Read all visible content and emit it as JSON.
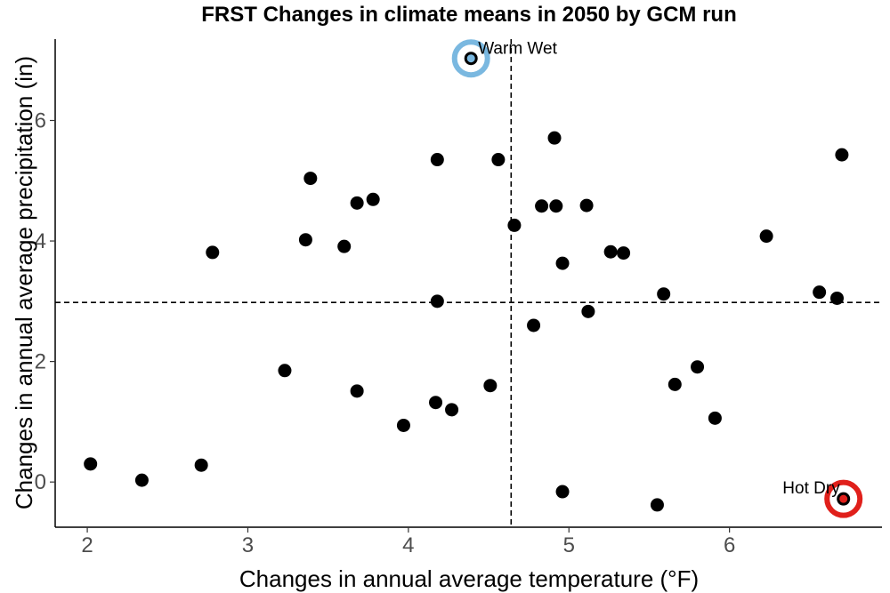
{
  "chart_data": {
    "type": "scatter",
    "title": "FRST Changes in climate means in 2050 by GCM run",
    "xlabel": "Changes in annual average temperature (°F)",
    "ylabel": "Changes in annual average precipitation (in)",
    "xlim": [
      1.8,
      6.95
    ],
    "ylim": [
      -0.75,
      7.35
    ],
    "xticks": [
      2,
      3,
      4,
      5,
      6
    ],
    "yticks": [
      0,
      2,
      4,
      6
    ],
    "grid": false,
    "reference_lines": {
      "x": 4.64,
      "y": 2.98
    },
    "point_color": "#000000",
    "points": [
      {
        "x": 2.02,
        "y": 0.3
      },
      {
        "x": 2.34,
        "y": 0.03
      },
      {
        "x": 2.71,
        "y": 0.28
      },
      {
        "x": 2.78,
        "y": 3.81
      },
      {
        "x": 3.23,
        "y": 1.85
      },
      {
        "x": 3.36,
        "y": 4.02
      },
      {
        "x": 3.39,
        "y": 5.04
      },
      {
        "x": 3.6,
        "y": 3.91
      },
      {
        "x": 3.68,
        "y": 4.63
      },
      {
        "x": 3.68,
        "y": 1.51
      },
      {
        "x": 3.78,
        "y": 4.69
      },
      {
        "x": 3.97,
        "y": 0.94
      },
      {
        "x": 4.17,
        "y": 1.32
      },
      {
        "x": 4.18,
        "y": 5.35
      },
      {
        "x": 4.18,
        "y": 3.0
      },
      {
        "x": 4.27,
        "y": 1.2
      },
      {
        "x": 4.39,
        "y": 7.03
      },
      {
        "x": 4.51,
        "y": 1.6
      },
      {
        "x": 4.56,
        "y": 5.35
      },
      {
        "x": 4.66,
        "y": 4.26
      },
      {
        "x": 4.78,
        "y": 2.6
      },
      {
        "x": 4.83,
        "y": 4.58
      },
      {
        "x": 4.91,
        "y": 5.71
      },
      {
        "x": 4.92,
        "y": 4.58
      },
      {
        "x": 4.96,
        "y": 3.63
      },
      {
        "x": 4.96,
        "y": -0.16
      },
      {
        "x": 5.11,
        "y": 4.59
      },
      {
        "x": 5.12,
        "y": 2.83
      },
      {
        "x": 5.26,
        "y": 3.82
      },
      {
        "x": 5.34,
        "y": 3.8
      },
      {
        "x": 5.55,
        "y": -0.38
      },
      {
        "x": 5.59,
        "y": 3.12
      },
      {
        "x": 5.66,
        "y": 1.62
      },
      {
        "x": 5.8,
        "y": 1.91
      },
      {
        "x": 5.91,
        "y": 1.06
      },
      {
        "x": 6.23,
        "y": 4.08
      },
      {
        "x": 6.56,
        "y": 3.15
      },
      {
        "x": 6.67,
        "y": 3.05
      },
      {
        "x": 6.7,
        "y": 5.43
      },
      {
        "x": 6.71,
        "y": -0.28
      }
    ],
    "highlights": [
      {
        "label": "Warm Wet",
        "x": 4.39,
        "y": 7.03,
        "color": "#7ab8e0"
      },
      {
        "label": "Hot Dry",
        "x": 6.71,
        "y": -0.28,
        "color": "#e0201b"
      }
    ]
  }
}
